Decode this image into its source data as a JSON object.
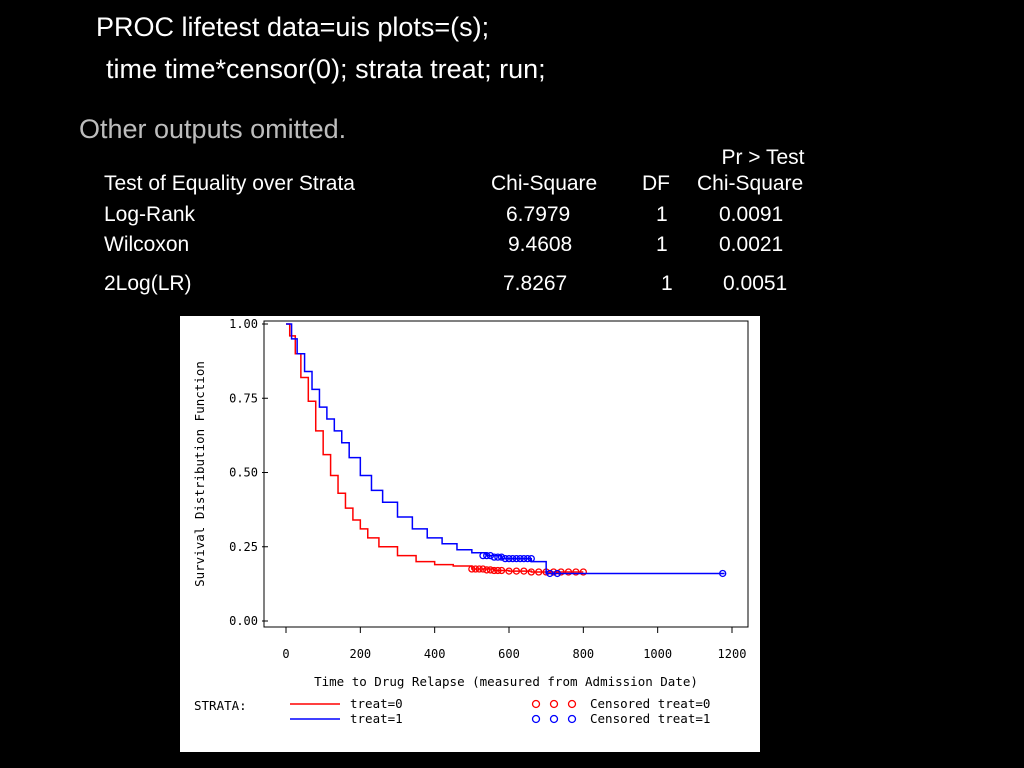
{
  "slide": {
    "code_line_1": "PROC lifetest data=uis plots=(s);",
    "code_line_2": "time time*censor(0); strata treat; run;",
    "note": "Other outputs omitted."
  },
  "table": {
    "header_top": "Pr > Test",
    "headers": [
      "Test of Equality over Strata",
      "Chi-Square",
      "DF",
      "Chi-Square"
    ],
    "rows": [
      {
        "test": "Log-Rank",
        "chisq": "6.7979",
        "df": "1",
        "p": "0.0091"
      },
      {
        "test": "Wilcoxon",
        "chisq": "9.4608",
        "df": "1",
        "p": "0.0021"
      },
      {
        "test": "2Log(LR)",
        "chisq": "7.8267",
        "df": "1",
        "p": "0.0051"
      }
    ]
  },
  "colors": {
    "treat0": "#ff0000",
    "treat1": "#0000ff"
  },
  "chart_data": {
    "type": "line",
    "xlabel": "Time to Drug Relapse (measured from Admission Date)",
    "ylabel": "Survival Distribution Function",
    "xlim": [
      0,
      1200
    ],
    "ylim": [
      0,
      1
    ],
    "xticks": [
      "0",
      "200",
      "400",
      "600",
      "800",
      "1000",
      "1200"
    ],
    "yticks": [
      "0.00",
      "0.25",
      "0.50",
      "0.75",
      "1.00"
    ],
    "legend_title": "STRATA:",
    "series": [
      {
        "name": "treat=0",
        "censored_label": "Censored treat=0",
        "x": [
          0,
          10,
          25,
          40,
          60,
          80,
          100,
          120,
          140,
          160,
          180,
          200,
          220,
          250,
          300,
          350,
          400,
          450,
          500,
          560,
          600,
          660,
          720,
          800
        ],
        "y": [
          1.0,
          0.96,
          0.9,
          0.82,
          0.74,
          0.64,
          0.56,
          0.49,
          0.43,
          0.38,
          0.34,
          0.31,
          0.28,
          0.25,
          0.22,
          0.2,
          0.19,
          0.185,
          0.175,
          0.17,
          0.168,
          0.165,
          0.165,
          0.165
        ],
        "censored_x": [
          500,
          510,
          520,
          530,
          540,
          550,
          560,
          570,
          580,
          600,
          620,
          640,
          660,
          680,
          700,
          720,
          740,
          760,
          780,
          800
        ],
        "censored_y": [
          0.175,
          0.175,
          0.175,
          0.175,
          0.172,
          0.172,
          0.17,
          0.17,
          0.17,
          0.168,
          0.168,
          0.168,
          0.165,
          0.165,
          0.165,
          0.165,
          0.165,
          0.165,
          0.165,
          0.165
        ]
      },
      {
        "name": "treat=1",
        "censored_label": "Censored treat=1",
        "x": [
          0,
          15,
          30,
          50,
          70,
          90,
          110,
          130,
          150,
          170,
          200,
          230,
          260,
          300,
          340,
          380,
          420,
          460,
          500,
          540,
          580,
          620,
          660,
          700,
          800,
          1000,
          1180
        ],
        "y": [
          1.0,
          0.95,
          0.9,
          0.84,
          0.78,
          0.72,
          0.68,
          0.64,
          0.6,
          0.55,
          0.49,
          0.44,
          0.4,
          0.35,
          0.31,
          0.28,
          0.26,
          0.24,
          0.23,
          0.22,
          0.21,
          0.21,
          0.2,
          0.16,
          0.16,
          0.16,
          0.16
        ],
        "censored_x": [
          530,
          540,
          550,
          560,
          570,
          580,
          590,
          600,
          610,
          620,
          630,
          640,
          650,
          660,
          710,
          730,
          1175
        ],
        "censored_y": [
          0.22,
          0.22,
          0.22,
          0.215,
          0.215,
          0.215,
          0.21,
          0.21,
          0.21,
          0.21,
          0.21,
          0.21,
          0.21,
          0.21,
          0.16,
          0.16,
          0.16
        ]
      }
    ]
  }
}
